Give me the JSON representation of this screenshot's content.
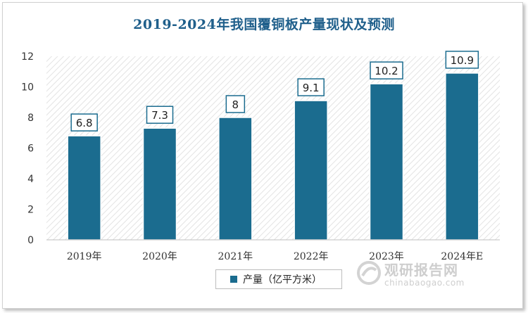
{
  "chart_data": {
    "type": "bar",
    "title": "2019-2024年我国覆铜板产量现状及预测",
    "categories": [
      "2019年",
      "2020年",
      "2021年",
      "2022年",
      "2023年",
      "2024年E"
    ],
    "series": [
      {
        "name": "产量（亿平方米）",
        "values": [
          6.8,
          7.3,
          8,
          9.1,
          10.2,
          10.9
        ]
      }
    ],
    "data_labels": [
      "6.8",
      "7.3",
      "8",
      "9.1",
      "10.2",
      "10.9"
    ],
    "ylim": [
      0,
      12
    ],
    "yticks": [
      0,
      2,
      4,
      6,
      8,
      10,
      12
    ],
    "grid": false,
    "legend_position": "bottom",
    "bar_color": "#1b6c8f",
    "title_color": "#1f5f8b"
  },
  "watermark": {
    "text": "观研报告网",
    "url": "chinabaogao.com"
  }
}
